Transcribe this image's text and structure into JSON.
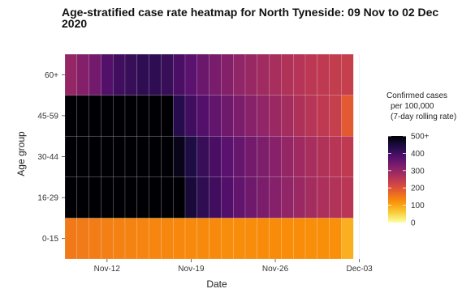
{
  "chart_data": {
    "type": "heatmap",
    "title": "Age-stratified case rate heatmap for North Tyneside: 09 Nov to 02 Dec 2020",
    "xlabel": "Date",
    "ylabel": "Age group",
    "x_tick_labels": [
      "Nov-12",
      "Nov-19",
      "Nov-26",
      "Dec-03"
    ],
    "x": [
      "2020-11-09",
      "2020-11-10",
      "2020-11-11",
      "2020-11-12",
      "2020-11-13",
      "2020-11-14",
      "2020-11-15",
      "2020-11-16",
      "2020-11-17",
      "2020-11-18",
      "2020-11-19",
      "2020-11-20",
      "2020-11-21",
      "2020-11-22",
      "2020-11-23",
      "2020-11-24",
      "2020-11-25",
      "2020-11-26",
      "2020-11-27",
      "2020-11-28",
      "2020-11-29",
      "2020-11-30",
      "2020-12-01",
      "2020-12-02"
    ],
    "y": [
      "0-15",
      "16-29",
      "30-44",
      "45-59",
      "60+"
    ],
    "values": [
      [
        150,
        148,
        145,
        142,
        140,
        138,
        136,
        135,
        133,
        132,
        130,
        130,
        130,
        128,
        128,
        128,
        127,
        127,
        126,
        126,
        125,
        125,
        124,
        90
      ],
      [
        560,
        560,
        560,
        560,
        560,
        560,
        560,
        560,
        560,
        520,
        450,
        420,
        400,
        380,
        360,
        345,
        330,
        318,
        305,
        292,
        280,
        270,
        262,
        252
      ],
      [
        520,
        540,
        560,
        560,
        560,
        560,
        560,
        560,
        560,
        480,
        440,
        410,
        390,
        370,
        355,
        340,
        328,
        315,
        300,
        288,
        275,
        265,
        255,
        245
      ],
      [
        560,
        560,
        560,
        560,
        560,
        560,
        560,
        560,
        500,
        430,
        400,
        380,
        360,
        345,
        330,
        316,
        304,
        292,
        280,
        268,
        256,
        246,
        236,
        190
      ],
      [
        300,
        320,
        340,
        380,
        400,
        410,
        420,
        420,
        410,
        390,
        370,
        350,
        335,
        320,
        305,
        295,
        285,
        275,
        265,
        258,
        250,
        245,
        240,
        235
      ]
    ],
    "colorbar": {
      "title_lines": [
        "Confirmed cases",
        "per 100,000",
        "(7-day rolling rate)"
      ],
      "ticks": [
        "500+",
        "400",
        "300",
        "200",
        "100",
        "0"
      ],
      "min": 0,
      "max": 500,
      "colors": [
        "#fcffa4",
        "#f9c932",
        "#f98e09",
        "#e45a31",
        "#bc3754",
        "#8a226a",
        "#57106e",
        "#1f0c48",
        "#000004"
      ]
    },
    "grid": true,
    "legend_position": "right"
  }
}
